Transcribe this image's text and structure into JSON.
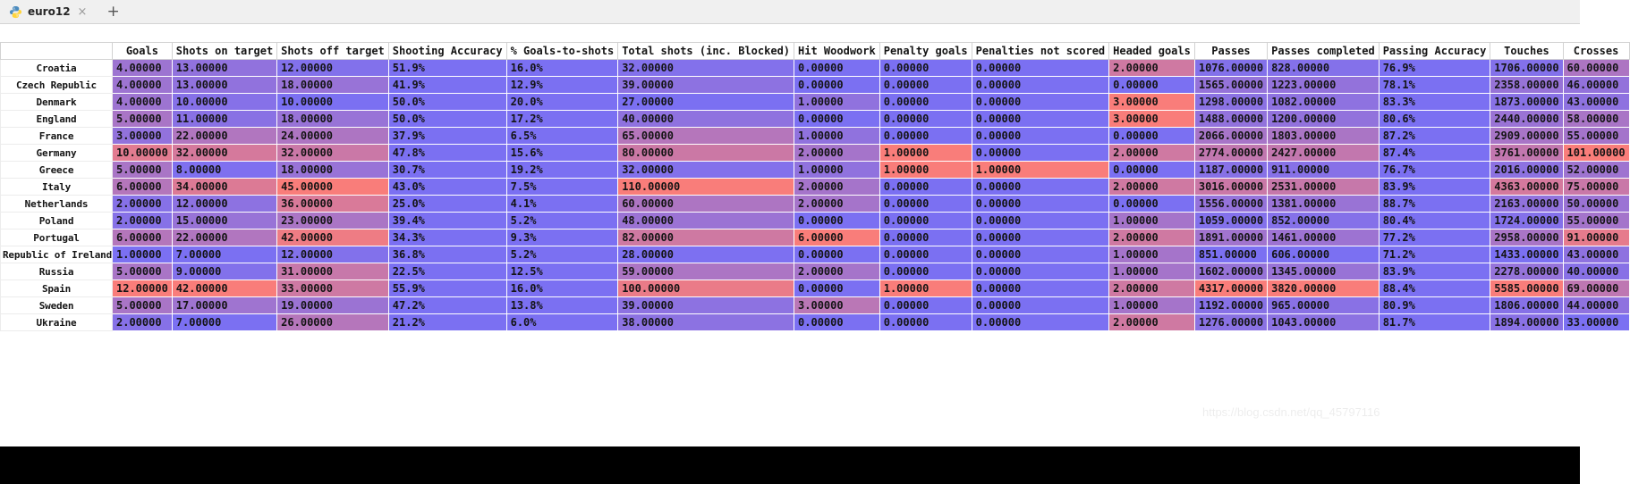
{
  "tabbar": {
    "tab_label": "euro12",
    "close_label": "×",
    "new_tab_label": "+"
  },
  "watermark": "https://blog.csdn.net/qq_45797116",
  "colors": {
    "gradient_low": "#7b70f2",
    "gradient_high": "#f97d7a",
    "percent_cell": "#7b70f2",
    "tabbar_bg": "#f0f0f0",
    "bottom_panel": "#000000"
  },
  "table": {
    "index_header": "",
    "columns": [
      "Goals",
      "Shots on target",
      "Shots off target",
      "Shooting Accuracy",
      "% Goals-to-shots",
      "Total shots (inc. Blocked)",
      "Hit Woodwork",
      "Penalty goals",
      "Penalties not scored",
      "Headed goals",
      "Passes",
      "Passes completed",
      "Passing Accuracy",
      "Touches",
      "Crosses"
    ],
    "percent_columns": [
      3,
      4,
      12
    ],
    "rows": [
      {
        "team": "Croatia",
        "values": [
          "4.00000",
          "13.00000",
          "12.00000",
          "51.9%",
          "16.0%",
          "32.00000",
          "0.00000",
          "0.00000",
          "0.00000",
          "2.00000",
          "1076.00000",
          "828.00000",
          "76.9%",
          "1706.00000",
          "60.00000"
        ]
      },
      {
        "team": "Czech Republic",
        "values": [
          "4.00000",
          "13.00000",
          "18.00000",
          "41.9%",
          "12.9%",
          "39.00000",
          "0.00000",
          "0.00000",
          "0.00000",
          "0.00000",
          "1565.00000",
          "1223.00000",
          "78.1%",
          "2358.00000",
          "46.00000"
        ]
      },
      {
        "team": "Denmark",
        "values": [
          "4.00000",
          "10.00000",
          "10.00000",
          "50.0%",
          "20.0%",
          "27.00000",
          "1.00000",
          "0.00000",
          "0.00000",
          "3.00000",
          "1298.00000",
          "1082.00000",
          "83.3%",
          "1873.00000",
          "43.00000"
        ]
      },
      {
        "team": "England",
        "values": [
          "5.00000",
          "11.00000",
          "18.00000",
          "50.0%",
          "17.2%",
          "40.00000",
          "0.00000",
          "0.00000",
          "0.00000",
          "3.00000",
          "1488.00000",
          "1200.00000",
          "80.6%",
          "2440.00000",
          "58.00000"
        ]
      },
      {
        "team": "France",
        "values": [
          "3.00000",
          "22.00000",
          "24.00000",
          "37.9%",
          "6.5%",
          "65.00000",
          "1.00000",
          "0.00000",
          "0.00000",
          "0.00000",
          "2066.00000",
          "1803.00000",
          "87.2%",
          "2909.00000",
          "55.00000"
        ]
      },
      {
        "team": "Germany",
        "values": [
          "10.00000",
          "32.00000",
          "32.00000",
          "47.8%",
          "15.6%",
          "80.00000",
          "2.00000",
          "1.00000",
          "0.00000",
          "2.00000",
          "2774.00000",
          "2427.00000",
          "87.4%",
          "3761.00000",
          "101.00000"
        ]
      },
      {
        "team": "Greece",
        "values": [
          "5.00000",
          "8.00000",
          "18.00000",
          "30.7%",
          "19.2%",
          "32.00000",
          "1.00000",
          "1.00000",
          "1.00000",
          "0.00000",
          "1187.00000",
          "911.00000",
          "76.7%",
          "2016.00000",
          "52.00000"
        ]
      },
      {
        "team": "Italy",
        "values": [
          "6.00000",
          "34.00000",
          "45.00000",
          "43.0%",
          "7.5%",
          "110.00000",
          "2.00000",
          "0.00000",
          "0.00000",
          "2.00000",
          "3016.00000",
          "2531.00000",
          "83.9%",
          "4363.00000",
          "75.00000"
        ]
      },
      {
        "team": "Netherlands",
        "values": [
          "2.00000",
          "12.00000",
          "36.00000",
          "25.0%",
          "4.1%",
          "60.00000",
          "2.00000",
          "0.00000",
          "0.00000",
          "0.00000",
          "1556.00000",
          "1381.00000",
          "88.7%",
          "2163.00000",
          "50.00000"
        ]
      },
      {
        "team": "Poland",
        "values": [
          "2.00000",
          "15.00000",
          "23.00000",
          "39.4%",
          "5.2%",
          "48.00000",
          "0.00000",
          "0.00000",
          "0.00000",
          "1.00000",
          "1059.00000",
          "852.00000",
          "80.4%",
          "1724.00000",
          "55.00000"
        ]
      },
      {
        "team": "Portugal",
        "values": [
          "6.00000",
          "22.00000",
          "42.00000",
          "34.3%",
          "9.3%",
          "82.00000",
          "6.00000",
          "0.00000",
          "0.00000",
          "2.00000",
          "1891.00000",
          "1461.00000",
          "77.2%",
          "2958.00000",
          "91.00000"
        ]
      },
      {
        "team": "Republic of Ireland",
        "values": [
          "1.00000",
          "7.00000",
          "12.00000",
          "36.8%",
          "5.2%",
          "28.00000",
          "0.00000",
          "0.00000",
          "0.00000",
          "1.00000",
          "851.00000",
          "606.00000",
          "71.2%",
          "1433.00000",
          "43.00000"
        ]
      },
      {
        "team": "Russia",
        "values": [
          "5.00000",
          "9.00000",
          "31.00000",
          "22.5%",
          "12.5%",
          "59.00000",
          "2.00000",
          "0.00000",
          "0.00000",
          "1.00000",
          "1602.00000",
          "1345.00000",
          "83.9%",
          "2278.00000",
          "40.00000"
        ]
      },
      {
        "team": "Spain",
        "values": [
          "12.00000",
          "42.00000",
          "33.00000",
          "55.9%",
          "16.0%",
          "100.00000",
          "0.00000",
          "1.00000",
          "0.00000",
          "2.00000",
          "4317.00000",
          "3820.00000",
          "88.4%",
          "5585.00000",
          "69.00000"
        ]
      },
      {
        "team": "Sweden",
        "values": [
          "5.00000",
          "17.00000",
          "19.00000",
          "47.2%",
          "13.8%",
          "39.00000",
          "3.00000",
          "0.00000",
          "0.00000",
          "1.00000",
          "1192.00000",
          "965.00000",
          "80.9%",
          "1806.00000",
          "44.00000"
        ]
      },
      {
        "team": "Ukraine",
        "values": [
          "2.00000",
          "7.00000",
          "26.00000",
          "21.2%",
          "6.0%",
          "38.00000",
          "0.00000",
          "0.00000",
          "0.00000",
          "2.00000",
          "1276.00000",
          "1043.00000",
          "81.7%",
          "1894.00000",
          "33.00000"
        ]
      }
    ]
  }
}
